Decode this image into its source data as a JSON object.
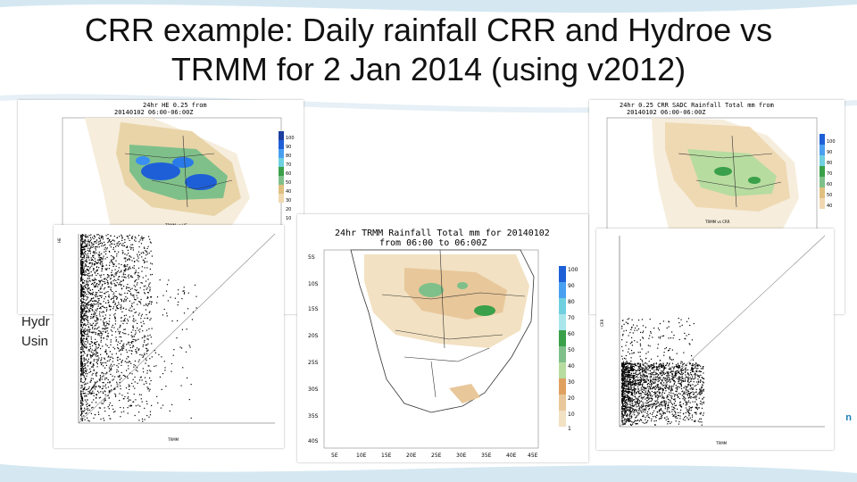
{
  "slide": {
    "title_line1": "CRR example: Daily rainfall CRR and Hydroe vs",
    "title_line2": "TRMM for 2 Jan 2014 (using v2012)",
    "side_label_1": "Hydr",
    "side_label_2": "Usin"
  },
  "map_he": {
    "title_line1": "24hr HE 0.25 from",
    "title_line2": "20140102 06:00-06:00Z",
    "footer": "TRMM vs HE",
    "scale_labels": [
      "100",
      "90",
      "80",
      "70",
      "60",
      "50",
      "40",
      "30",
      "20",
      "10"
    ]
  },
  "map_crr": {
    "title_line1": "24hr 0.25 CRR SADC Rainfall Total mm from",
    "title_line2": "20140102 06:00-06:00Z",
    "footer": "TRMM vs CRR",
    "scale_labels": [
      "100",
      "90",
      "80",
      "70",
      "60",
      "50",
      "40"
    ]
  },
  "map_trmm": {
    "title_line1": "24hr TRMM Rainfall Total mm for 20140102",
    "title_line2": "from 06:00 to 06:00Z",
    "scale_labels": [
      "100",
      "90",
      "80",
      "70",
      "60",
      "50",
      "40",
      "30",
      "20",
      "10",
      "1"
    ],
    "y_labels": [
      "5S",
      "10S",
      "15S",
      "20S",
      "25S",
      "30S",
      "35S",
      "40S"
    ],
    "x_labels": [
      "5E",
      "10E",
      "15E",
      "20E",
      "25E",
      "30E",
      "35E",
      "40E",
      "45E"
    ]
  },
  "scatter_he": {
    "xlabel": "TRMM",
    "ylabel": "HE"
  },
  "scatter_crr": {
    "xlabel": "TRMM",
    "ylabel": "CRR"
  },
  "logo": {
    "text": "n"
  }
}
